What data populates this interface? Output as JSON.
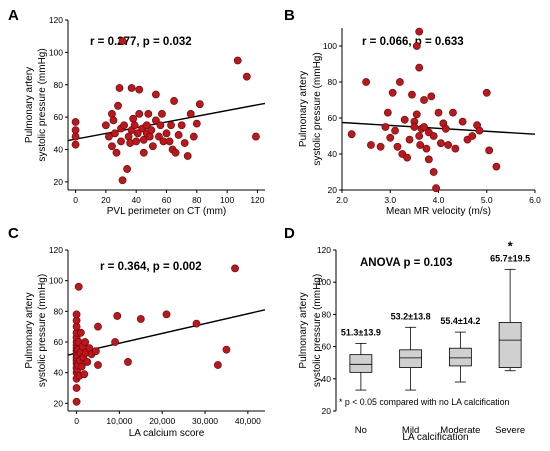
{
  "chart_data": [
    {
      "panel": "A",
      "type": "scatter",
      "annotation": "r = 0.277, p = 0.032",
      "xlabel": "PVL perimeter on CT (mm)",
      "ylabel": "Pulmonary artery systolic pressure (mmHg)",
      "xlim": [
        -5,
        125
      ],
      "ylim": [
        15,
        120
      ],
      "xticks": [
        0,
        20,
        40,
        60,
        80,
        100,
        120
      ],
      "yticks": [
        20,
        40,
        60,
        80,
        100,
        120
      ],
      "fit_line": {
        "x": [
          -5,
          125
        ],
        "y": [
          45.5,
          68.5
        ]
      },
      "points": [
        [
          0,
          43
        ],
        [
          0,
          48
        ],
        [
          0,
          52
        ],
        [
          0,
          57
        ],
        [
          20,
          55
        ],
        [
          22,
          48
        ],
        [
          24,
          42
        ],
        [
          24,
          62
        ],
        [
          25,
          58
        ],
        [
          26,
          50
        ],
        [
          27,
          38
        ],
        [
          28,
          67
        ],
        [
          30,
          45
        ],
        [
          30,
          53
        ],
        [
          31,
          21
        ],
        [
          32,
          55
        ],
        [
          34,
          28
        ],
        [
          35,
          48
        ],
        [
          36,
          44
        ],
        [
          37,
          52
        ],
        [
          38,
          59
        ],
        [
          39,
          55
        ],
        [
          40,
          45
        ],
        [
          41,
          50
        ],
        [
          42,
          62
        ],
        [
          42,
          77
        ],
        [
          44,
          53
        ],
        [
          45,
          46
        ],
        [
          45,
          38
        ],
        [
          47,
          50
        ],
        [
          47,
          55
        ],
        [
          48,
          62
        ],
        [
          49,
          48
        ],
        [
          50,
          52
        ],
        [
          51,
          42
        ],
        [
          53,
          58
        ],
        [
          55,
          48
        ],
        [
          56,
          55
        ],
        [
          57,
          62
        ],
        [
          58,
          45
        ],
        [
          60,
          50
        ],
        [
          62,
          45
        ],
        [
          63,
          55
        ],
        [
          64,
          40
        ],
        [
          65,
          70
        ],
        [
          66,
          38
        ],
        [
          68,
          49
        ],
        [
          70,
          55
        ],
        [
          72,
          44
        ],
        [
          74,
          36
        ],
        [
          76,
          62
        ],
        [
          78,
          48
        ],
        [
          80,
          56
        ],
        [
          82,
          68
        ],
        [
          29,
          78
        ],
        [
          37,
          78
        ],
        [
          53,
          74
        ],
        [
          31,
          107
        ],
        [
          107,
          95
        ],
        [
          113,
          85
        ],
        [
          119,
          48
        ]
      ]
    },
    {
      "panel": "B",
      "type": "scatter",
      "annotation": "r = 0.066, p = 0.633",
      "xlabel": "Mean MR velocity (m/s)",
      "ylabel": "Pulmonary artery systolic pressure (mmHg)",
      "xlim": [
        2.0,
        6.0
      ],
      "ylim": [
        20,
        110
      ],
      "xticks": [
        "2.0",
        "3.0",
        "4.0",
        "5.0",
        "6.0"
      ],
      "yticks": [
        20,
        40,
        60,
        80,
        100
      ],
      "fit_line": {
        "x": [
          2.0,
          6.0
        ],
        "y": [
          57.5,
          51.0
        ]
      },
      "points": [
        [
          2.2,
          51
        ],
        [
          2.5,
          80
        ],
        [
          2.6,
          45
        ],
        [
          2.8,
          44
        ],
        [
          2.9,
          55
        ],
        [
          2.95,
          63
        ],
        [
          3.0,
          49
        ],
        [
          3.05,
          74
        ],
        [
          3.1,
          53
        ],
        [
          3.15,
          44
        ],
        [
          3.2,
          80
        ],
        [
          3.25,
          40
        ],
        [
          3.3,
          59
        ],
        [
          3.35,
          38
        ],
        [
          3.4,
          48
        ],
        [
          3.45,
          73
        ],
        [
          3.5,
          58
        ],
        [
          3.5,
          55
        ],
        [
          3.55,
          62
        ],
        [
          3.55,
          100
        ],
        [
          3.6,
          108
        ],
        [
          3.6,
          88
        ],
        [
          3.6,
          50
        ],
        [
          3.62,
          45
        ],
        [
          3.65,
          54
        ],
        [
          3.7,
          70
        ],
        [
          3.7,
          55
        ],
        [
          3.75,
          43
        ],
        [
          3.8,
          52
        ],
        [
          3.8,
          37
        ],
        [
          3.85,
          72
        ],
        [
          3.9,
          50
        ],
        [
          3.9,
          30
        ],
        [
          3.95,
          21
        ],
        [
          4.0,
          63
        ],
        [
          4.05,
          46
        ],
        [
          4.1,
          57
        ],
        [
          4.15,
          54
        ],
        [
          4.2,
          45
        ],
        [
          4.3,
          63
        ],
        [
          4.35,
          43
        ],
        [
          4.5,
          58
        ],
        [
          4.6,
          48
        ],
        [
          4.7,
          50
        ],
        [
          4.8,
          56
        ],
        [
          4.85,
          53
        ],
        [
          5.0,
          74
        ],
        [
          5.05,
          42
        ],
        [
          5.2,
          33
        ]
      ]
    },
    {
      "panel": "C",
      "type": "scatter",
      "annotation": "r = 0.364, p = 0.002",
      "xlabel": "LA calcium score",
      "ylabel": "Pulmonary artery systolic pressure (mmHg)",
      "xlim": [
        -2000,
        44000
      ],
      "ylim": [
        15,
        120
      ],
      "xticks": [
        "0",
        "10,000",
        "20,000",
        "30,000",
        "40,000"
      ],
      "xtick_values": [
        0,
        10000,
        20000,
        30000,
        40000
      ],
      "yticks": [
        20,
        40,
        60,
        80,
        100,
        120
      ],
      "fit_line": {
        "x": [
          -2000,
          44000
        ],
        "y": [
          51.5,
          81.0
        ]
      },
      "points": [
        [
          0,
          21
        ],
        [
          0,
          30
        ],
        [
          0,
          36
        ],
        [
          0,
          40
        ],
        [
          0,
          43
        ],
        [
          0,
          46
        ],
        [
          0,
          48
        ],
        [
          0,
          50
        ],
        [
          0,
          52
        ],
        [
          0,
          54
        ],
        [
          0,
          56
        ],
        [
          0,
          58
        ],
        [
          0,
          60
        ],
        [
          0,
          63
        ],
        [
          0,
          66
        ],
        [
          0,
          70
        ],
        [
          0,
          74
        ],
        [
          0,
          78
        ],
        [
          200,
          42
        ],
        [
          200,
          51
        ],
        [
          300,
          45
        ],
        [
          400,
          55
        ],
        [
          500,
          60
        ],
        [
          500,
          96
        ],
        [
          700,
          38
        ],
        [
          800,
          48
        ],
        [
          900,
          53
        ],
        [
          1000,
          66
        ],
        [
          1200,
          44
        ],
        [
          1400,
          57
        ],
        [
          1600,
          50
        ],
        [
          1800,
          39
        ],
        [
          2000,
          60
        ],
        [
          2200,
          53
        ],
        [
          2500,
          47
        ],
        [
          3000,
          56
        ],
        [
          3500,
          52
        ],
        [
          4500,
          54
        ],
        [
          5000,
          70
        ],
        [
          5000,
          45
        ],
        [
          9000,
          60
        ],
        [
          9500,
          77
        ],
        [
          12000,
          47
        ],
        [
          15000,
          75
        ],
        [
          21000,
          78
        ],
        [
          28000,
          72
        ],
        [
          33000,
          45
        ],
        [
          35000,
          55
        ],
        [
          37000,
          108
        ]
      ]
    },
    {
      "panel": "D",
      "type": "box",
      "annotation": "ANOVA p = 0.103",
      "xlabel": "LA calcification",
      "ylabel": "Pulmonary artery systolic pressure (mmHg)",
      "ylim": [
        20,
        120
      ],
      "yticks": [
        20,
        40,
        60,
        80,
        100,
        120
      ],
      "categories": [
        "No",
        "Mild",
        "Moderate",
        "Severe"
      ],
      "mean_sd_labels": [
        "51.3±13.9",
        "53.2±13.8",
        "55.4±14.2",
        "65.7±19.5"
      ],
      "significance_marker": "*",
      "significant_category": "Severe",
      "footnote": "* p < 0.05 compared with no LA calcification",
      "boxes": [
        {
          "min": 33,
          "q1": 44,
          "median": 49,
          "q3": 55,
          "max": 62
        },
        {
          "min": 33,
          "q1": 47,
          "median": 53,
          "q3": 58,
          "max": 72
        },
        {
          "min": 38,
          "q1": 48,
          "median": 53,
          "q3": 59,
          "max": 69
        },
        {
          "min": 45,
          "q1": 47,
          "median": 64,
          "q3": 75,
          "max": 108
        }
      ]
    }
  ]
}
